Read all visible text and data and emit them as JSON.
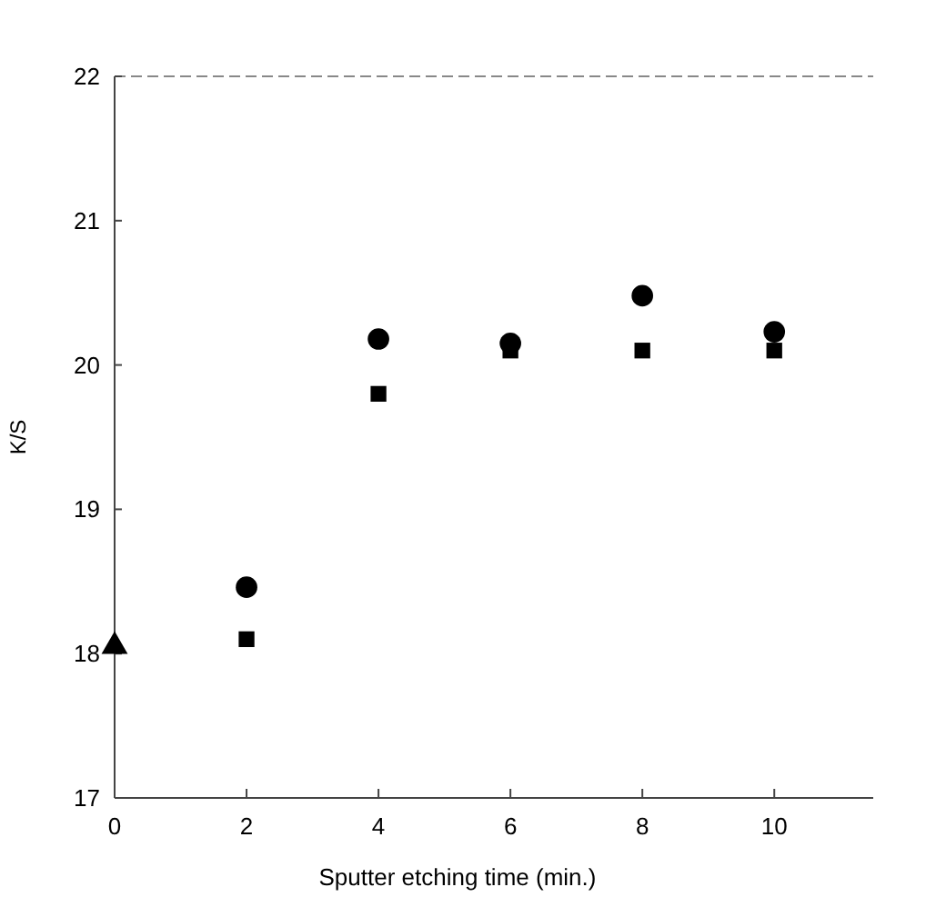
{
  "chart_data": {
    "type": "scatter",
    "xlabel": "Sputter etching  time (min.)",
    "ylabel": "K/S",
    "xlim": [
      0,
      11.5
    ],
    "xticks": [
      0,
      2,
      4,
      6,
      8,
      10
    ],
    "ylim": [
      17,
      22
    ],
    "yticks": [
      17,
      18,
      19,
      20,
      21,
      22
    ],
    "grid": false,
    "series": [
      {
        "color": "#000000",
        "marker": "circle",
        "x": [
          2,
          4,
          6,
          8,
          10
        ],
        "values": [
          18.46,
          20.18,
          20.15,
          20.48,
          20.23
        ]
      },
      {
        "color": "#000000",
        "marker": "square",
        "x": [
          2,
          4,
          6,
          8,
          10
        ],
        "values": [
          18.1,
          19.8,
          20.1,
          20.1,
          20.1
        ]
      },
      {
        "color": "#000000",
        "marker": "triangle",
        "x": [
          0
        ],
        "values": [
          18.05
        ]
      }
    ]
  }
}
